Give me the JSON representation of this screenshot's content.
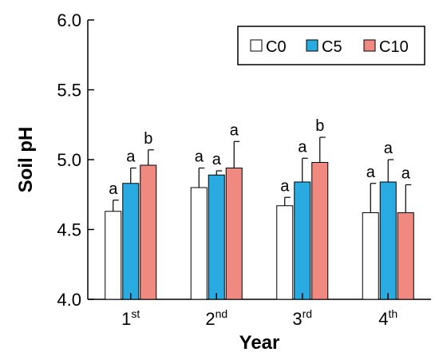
{
  "chart_data": {
    "type": "bar",
    "xlabel": "Year",
    "ylabel": "Soil pH",
    "ylim": [
      4.0,
      6.0
    ],
    "yticks": [
      "4.0",
      "4.5",
      "5.0",
      "5.5",
      "6.0"
    ],
    "categories": [
      {
        "base": "1",
        "sup": "st"
      },
      {
        "base": "2",
        "sup": "nd"
      },
      {
        "base": "3",
        "sup": "rd"
      },
      {
        "base": "4",
        "sup": "th"
      }
    ],
    "series": [
      {
        "name": "C0",
        "color": "#ffffff",
        "values": [
          4.63,
          4.8,
          4.67,
          4.62
        ],
        "errors": [
          0.08,
          0.14,
          0.06,
          0.21
        ],
        "letters": [
          "a",
          "a",
          "a",
          "a"
        ]
      },
      {
        "name": "C5",
        "color": "#29aae1",
        "values": [
          4.83,
          4.89,
          4.84,
          4.84
        ],
        "errors": [
          0.11,
          0.03,
          0.17,
          0.16
        ],
        "letters": [
          "a",
          "a",
          "a",
          "a"
        ]
      },
      {
        "name": "C10",
        "color": "#f08a80",
        "values": [
          4.96,
          4.94,
          4.98,
          4.62
        ],
        "errors": [
          0.11,
          0.19,
          0.18,
          0.2
        ],
        "letters": [
          "b",
          "a",
          "b",
          "a"
        ]
      }
    ],
    "legend_position": "top-right",
    "grid": false
  }
}
